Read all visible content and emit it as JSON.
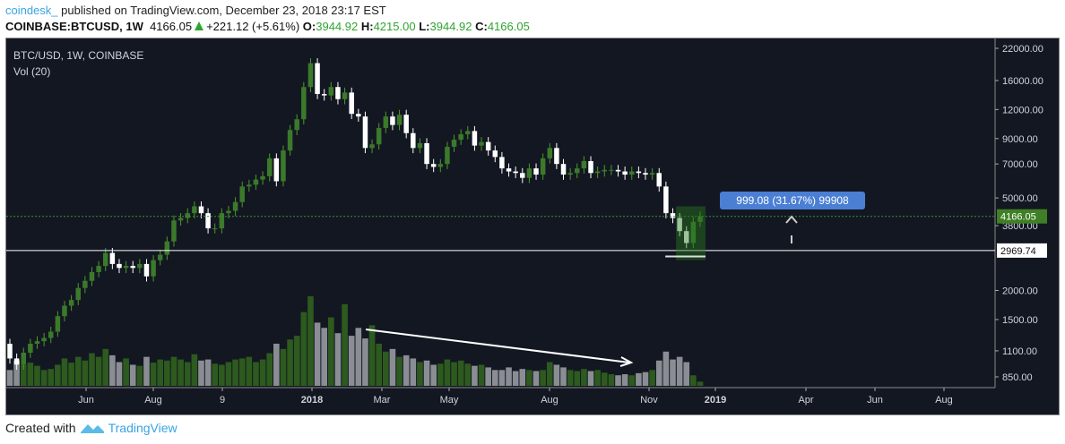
{
  "header": {
    "user": "coindesk_",
    "published": "published on TradingView.com, December 23, 2018 23:17 EST"
  },
  "quote": {
    "symbol": "COINBASE:BTCUSD, 1W",
    "last": "4166.05",
    "change": "+221.12 (+5.61%)",
    "o_label": "O:",
    "o": "3944.92",
    "h_label": "H:",
    "h": "4215.00",
    "l_label": "L:",
    "l": "3944.92",
    "c_label": "C:",
    "c": "4166.05"
  },
  "legend": {
    "title": "BTC/USD, 1W, COINBASE",
    "vol": "Vol (20)"
  },
  "measure": {
    "label": "999.08 (31.67%) 99908"
  },
  "footer": {
    "created": "Created with",
    "brand": "TradingView"
  },
  "colors": {
    "up": "#3b7a2a",
    "down": "#ffffff",
    "vol_up": "#2d5a1e",
    "vol_down": "#8a8d93",
    "measure": "#4a7fd4",
    "bg": "#131722"
  },
  "chart_data": {
    "type": "candlestick",
    "title": "BTC/USD, 1W, COINBASE",
    "yscale": "log",
    "ylim": [
      850,
      22000
    ],
    "y_ticks": [
      "22000.00",
      "16000.00",
      "12000.00",
      "9000.00",
      "7000.00",
      "5000.00",
      "3800.00",
      "2000.00",
      "1500.00",
      "1100.00",
      "850.00"
    ],
    "y_tick_values": [
      22000,
      16000,
      12000,
      9000,
      7000,
      5000,
      3800,
      2000,
      1500,
      1100,
      850
    ],
    "price_labels": [
      {
        "text": "4166.05",
        "value": 4166.05,
        "kind": "last"
      },
      {
        "text": "2969.74",
        "value": 2969.74,
        "kind": "level"
      }
    ],
    "x_ticks": [
      "Jun",
      "Aug",
      "9",
      "2018",
      "Mar",
      "May",
      "Aug",
      "Nov",
      "2019",
      "Apr",
      "Jun",
      "Aug"
    ],
    "first_open": 1180,
    "closes": [
      1020,
      960,
      1080,
      1180,
      1210,
      1250,
      1330,
      1550,
      1720,
      1820,
      2050,
      2200,
      2400,
      2550,
      2900,
      2600,
      2500,
      2550,
      2500,
      2600,
      2300,
      2700,
      2850,
      3250,
      4000,
      4100,
      4300,
      4600,
      4300,
      3700,
      3700,
      4300,
      4400,
      4800,
      5600,
      5700,
      6000,
      6200,
      7400,
      5900,
      8000,
      9800,
      10900,
      15000,
      19000,
      14000,
      13800,
      15000,
      13300,
      14200,
      11500,
      11200,
      8200,
      8500,
      10000,
      11200,
      10300,
      11400,
      9500,
      8200,
      8600,
      7000,
      6800,
      7000,
      8300,
      8900,
      9400,
      9700,
      8400,
      8700,
      8000,
      7500,
      6700,
      6500,
      6400,
      6100,
      6700,
      6300,
      7400,
      8200,
      7000,
      6300,
      6400,
      6700,
      7200,
      6400,
      6500,
      6600,
      6600,
      6500,
      6300,
      6500,
      6400,
      6300,
      6400,
      5600,
      4300,
      4100,
      3600,
      3200,
      3944.92,
      4166.05
    ],
    "volume": [
      30,
      48,
      40,
      44,
      38,
      30,
      32,
      40,
      52,
      44,
      55,
      48,
      62,
      55,
      70,
      58,
      45,
      52,
      40,
      38,
      55,
      44,
      50,
      48,
      55,
      50,
      45,
      60,
      48,
      50,
      42,
      40,
      45,
      50,
      52,
      55,
      45,
      50,
      62,
      80,
      70,
      88,
      95,
      140,
      170,
      120,
      110,
      130,
      100,
      155,
      95,
      110,
      90,
      115,
      80,
      65,
      70,
      55,
      58,
      52,
      45,
      48,
      40,
      42,
      50,
      45,
      48,
      42,
      38,
      40,
      35,
      30,
      30,
      35,
      28,
      32,
      30,
      28,
      30,
      45,
      40,
      35,
      30,
      28,
      32,
      28,
      30,
      25,
      22,
      20,
      22,
      20,
      24,
      26,
      30,
      48,
      65,
      50,
      55,
      45,
      20,
      8
    ],
    "annotations": [
      "measure 999.08 (31.67%) 99908",
      "volume downtrend arrow",
      "support line 2969.74"
    ]
  }
}
